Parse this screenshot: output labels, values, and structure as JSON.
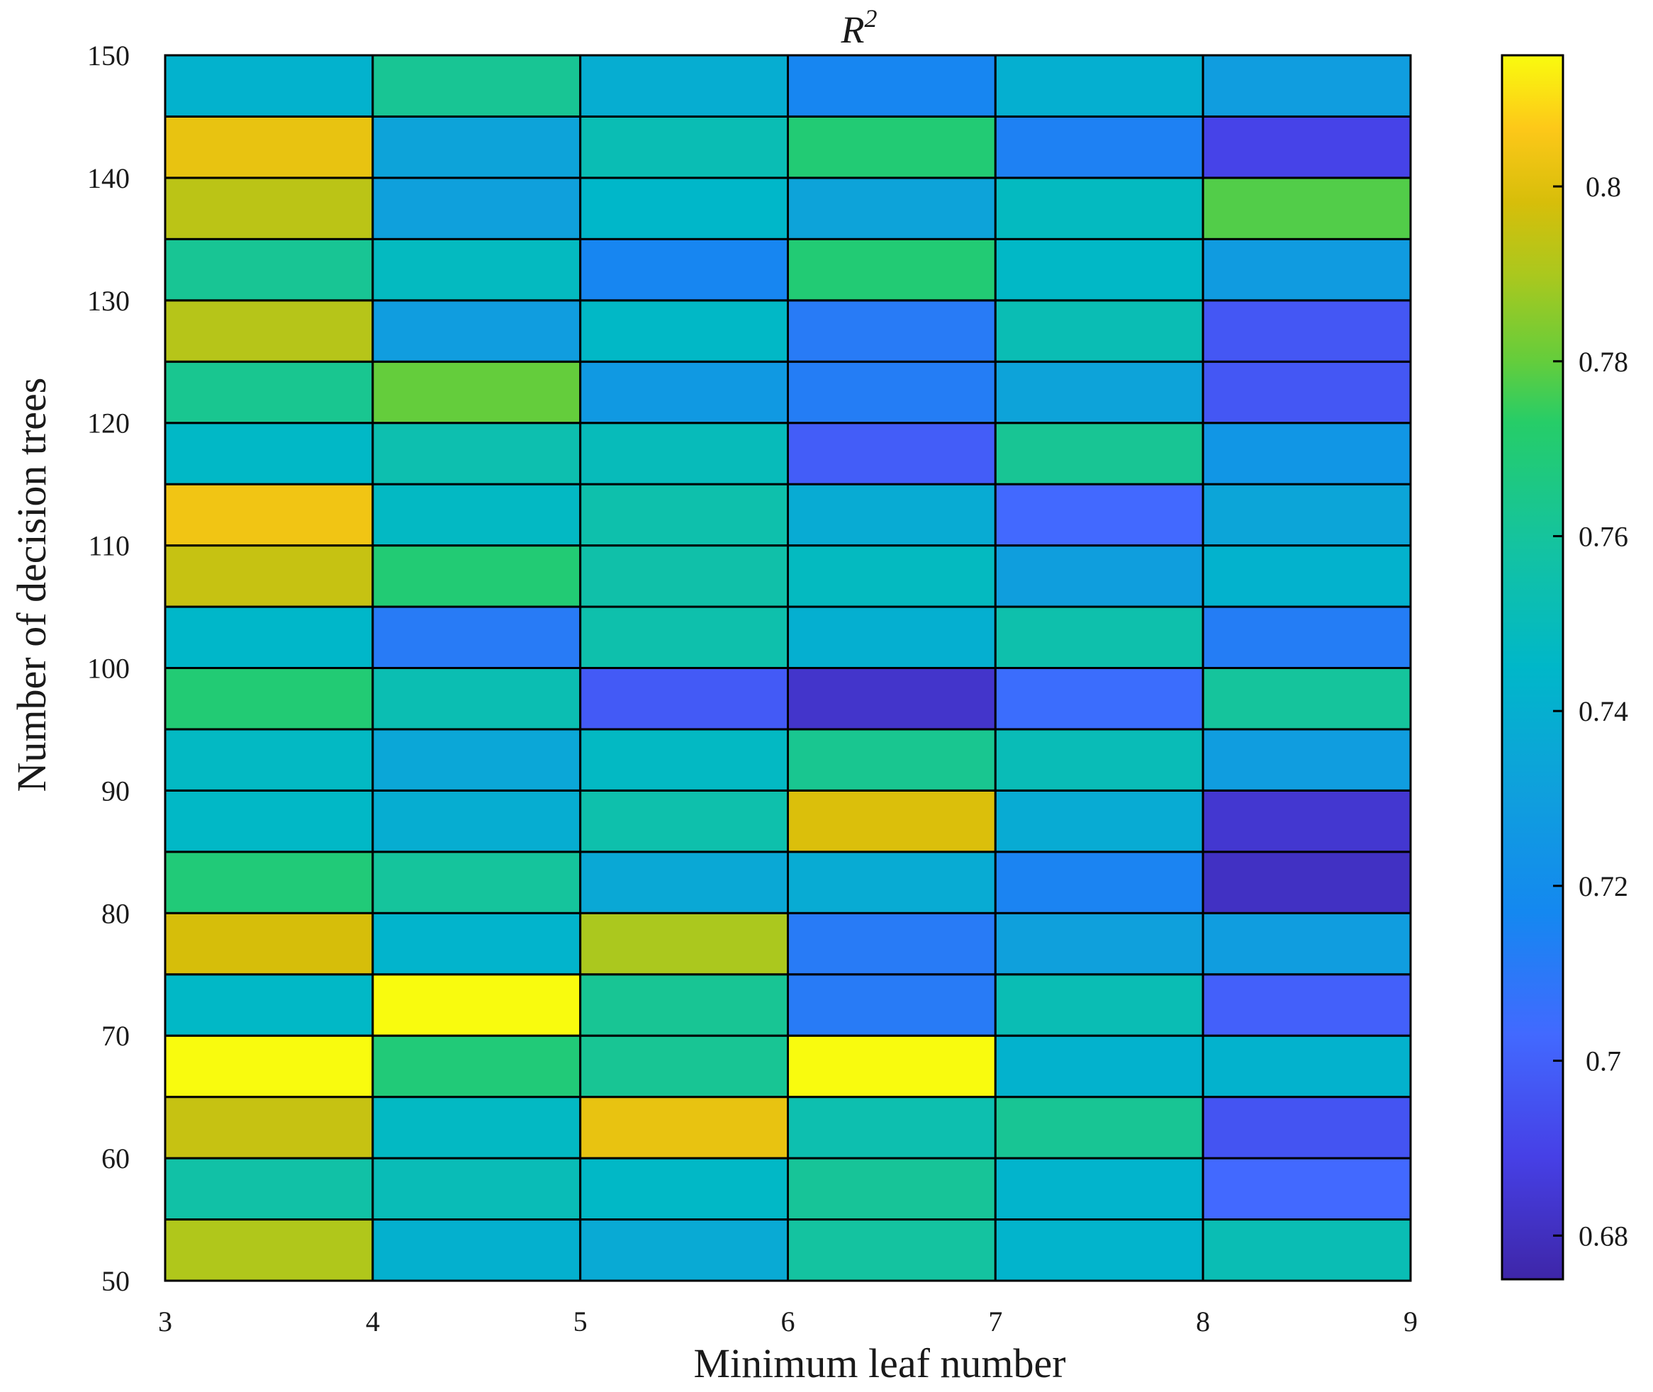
{
  "chart_data": {
    "type": "heatmap",
    "title": "R",
    "title_superscript": "2",
    "xlabel": "Minimum leaf number",
    "ylabel": "Number of decision trees",
    "x_range": [
      3,
      9
    ],
    "y_range": [
      50,
      150
    ],
    "x_ticks": [
      "3",
      "4",
      "5",
      "6",
      "7",
      "8",
      "9"
    ],
    "y_ticks": [
      "50",
      "60",
      "70",
      "80",
      "90",
      "100",
      "110",
      "120",
      "130",
      "140",
      "150"
    ],
    "x_bins": [
      [
        3,
        4
      ],
      [
        4,
        5
      ],
      [
        5,
        6
      ],
      [
        6,
        7
      ],
      [
        7,
        8
      ],
      [
        8,
        9
      ]
    ],
    "row_ranges_bottom_to_top": [
      [
        50,
        55
      ],
      [
        55,
        60
      ],
      [
        60,
        65
      ],
      [
        65,
        70
      ],
      [
        70,
        75
      ],
      [
        75,
        80
      ],
      [
        80,
        85
      ],
      [
        85,
        90
      ],
      [
        90,
        95
      ],
      [
        95,
        100
      ],
      [
        100,
        105
      ],
      [
        105,
        110
      ],
      [
        110,
        115
      ],
      [
        115,
        120
      ],
      [
        120,
        125
      ],
      [
        125,
        130
      ],
      [
        130,
        135
      ],
      [
        135,
        140
      ],
      [
        140,
        145
      ],
      [
        145,
        150
      ]
    ],
    "values_bottom_to_top": [
      [
        0.791,
        0.741,
        0.737,
        0.759,
        0.743,
        0.752
      ],
      [
        0.757,
        0.751,
        0.746,
        0.761,
        0.743,
        0.703
      ],
      [
        0.795,
        0.747,
        0.802,
        0.754,
        0.762,
        0.696
      ],
      [
        0.817,
        0.769,
        0.762,
        0.817,
        0.742,
        0.742
      ],
      [
        0.746,
        0.817,
        0.762,
        0.711,
        0.752,
        0.7
      ],
      [
        0.798,
        0.743,
        0.79,
        0.711,
        0.731,
        0.729
      ],
      [
        0.769,
        0.76,
        0.736,
        0.738,
        0.715,
        0.681
      ],
      [
        0.746,
        0.739,
        0.755,
        0.799,
        0.738,
        0.684
      ],
      [
        0.747,
        0.735,
        0.747,
        0.763,
        0.751,
        0.729
      ],
      [
        0.77,
        0.753,
        0.698,
        0.683,
        0.705,
        0.76
      ],
      [
        0.745,
        0.711,
        0.755,
        0.74,
        0.755,
        0.712
      ],
      [
        0.795,
        0.77,
        0.756,
        0.748,
        0.73,
        0.742
      ],
      [
        0.804,
        0.747,
        0.755,
        0.738,
        0.703,
        0.734
      ],
      [
        0.746,
        0.754,
        0.75,
        0.699,
        0.762,
        0.725
      ],
      [
        0.763,
        0.78,
        0.727,
        0.712,
        0.733,
        0.697
      ],
      [
        0.792,
        0.729,
        0.746,
        0.711,
        0.752,
        0.697
      ],
      [
        0.762,
        0.748,
        0.716,
        0.77,
        0.746,
        0.728
      ],
      [
        0.793,
        0.731,
        0.745,
        0.733,
        0.748,
        0.778
      ],
      [
        0.802,
        0.733,
        0.752,
        0.77,
        0.714,
        0.69
      ],
      [
        0.742,
        0.762,
        0.739,
        0.716,
        0.74,
        0.729
      ]
    ],
    "colorbar": {
      "min": 0.675,
      "max": 0.815,
      "ticks": [
        "0.68",
        "0.7",
        "0.72",
        "0.74",
        "0.76",
        "0.78",
        "0.8"
      ],
      "colormap": "parula"
    }
  }
}
